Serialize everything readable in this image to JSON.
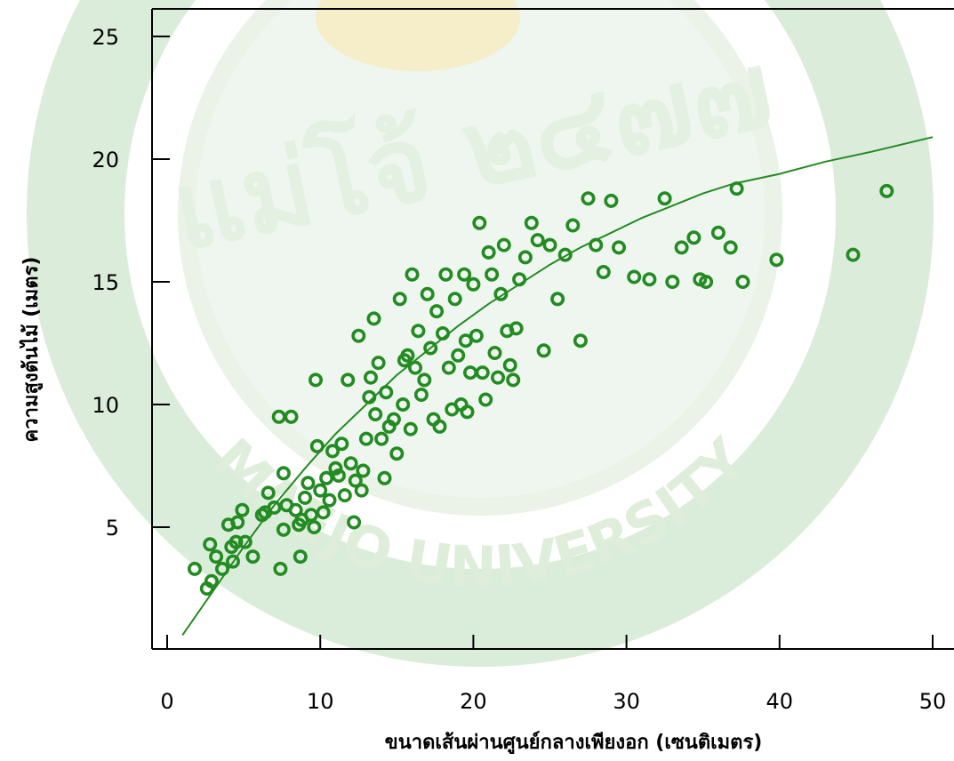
{
  "watermark": {
    "university": "MAEJO UNIVERSITY",
    "motto": "แม่โจ้ ๒๔๗๗",
    "ring_color": "#3f8f3f",
    "accent_color": "#e8c23a"
  },
  "chart_data": {
    "type": "scatter",
    "title": "",
    "xlabel": "ขนาดเส้นผ่านศูนย์กลางเพียงอก (เซนติเมตร)",
    "ylabel": "ความสูงต้นไม้ (เมตร)",
    "xlim": [
      -1,
      51
    ],
    "ylim": [
      0,
      26
    ],
    "x_ticks": [
      0,
      10,
      20,
      30,
      40,
      50
    ],
    "y_ticks": [
      5,
      10,
      15,
      20,
      25
    ],
    "grid": false,
    "point_color": "#228b22",
    "line_color": "#228b22",
    "series": [
      {
        "kind": "points",
        "points": [
          [
            1.8,
            3.3
          ],
          [
            2.6,
            2.5
          ],
          [
            2.8,
            4.3
          ],
          [
            2.9,
            2.8
          ],
          [
            3.2,
            3.8
          ],
          [
            3.6,
            3.3
          ],
          [
            4.3,
            3.6
          ],
          [
            4.0,
            5.1
          ],
          [
            4.6,
            5.2
          ],
          [
            4.2,
            4.2
          ],
          [
            4.5,
            4.4
          ],
          [
            4.9,
            5.7
          ],
          [
            5.1,
            4.4
          ],
          [
            5.6,
            3.8
          ],
          [
            6.2,
            5.5
          ],
          [
            6.4,
            5.6
          ],
          [
            6.6,
            6.4
          ],
          [
            7.0,
            5.8
          ],
          [
            7.3,
            9.5
          ],
          [
            7.4,
            3.3
          ],
          [
            7.6,
            7.2
          ],
          [
            7.6,
            4.9
          ],
          [
            7.8,
            5.9
          ],
          [
            8.1,
            9.5
          ],
          [
            8.4,
            5.7
          ],
          [
            8.6,
            5.1
          ],
          [
            8.7,
            3.8
          ],
          [
            8.8,
            5.3
          ],
          [
            9.0,
            6.2
          ],
          [
            9.2,
            6.8
          ],
          [
            9.4,
            5.5
          ],
          [
            9.6,
            5.0
          ],
          [
            9.7,
            11.0
          ],
          [
            9.8,
            8.3
          ],
          [
            10.0,
            6.5
          ],
          [
            10.2,
            5.6
          ],
          [
            10.4,
            7.0
          ],
          [
            10.6,
            6.1
          ],
          [
            10.8,
            8.1
          ],
          [
            11.0,
            7.4
          ],
          [
            11.2,
            7.1
          ],
          [
            11.4,
            8.4
          ],
          [
            11.6,
            6.3
          ],
          [
            11.8,
            11.0
          ],
          [
            12.0,
            7.6
          ],
          [
            12.2,
            5.2
          ],
          [
            12.3,
            6.9
          ],
          [
            12.5,
            12.8
          ],
          [
            12.7,
            6.5
          ],
          [
            12.8,
            7.3
          ],
          [
            13.0,
            8.6
          ],
          [
            13.2,
            10.3
          ],
          [
            13.3,
            11.1
          ],
          [
            13.5,
            13.5
          ],
          [
            13.6,
            9.6
          ],
          [
            13.8,
            11.7
          ],
          [
            14.0,
            8.6
          ],
          [
            14.2,
            7.0
          ],
          [
            14.3,
            10.5
          ],
          [
            14.5,
            9.1
          ],
          [
            14.8,
            9.4
          ],
          [
            15.0,
            8.0
          ],
          [
            15.2,
            14.3
          ],
          [
            15.4,
            10.0
          ],
          [
            15.5,
            11.8
          ],
          [
            15.7,
            12.0
          ],
          [
            15.9,
            9.0
          ],
          [
            16.0,
            15.3
          ],
          [
            16.2,
            11.5
          ],
          [
            16.4,
            13.0
          ],
          [
            16.6,
            10.4
          ],
          [
            16.8,
            11.0
          ],
          [
            17.0,
            14.5
          ],
          [
            17.2,
            12.3
          ],
          [
            17.4,
            9.4
          ],
          [
            17.6,
            13.8
          ],
          [
            17.8,
            9.1
          ],
          [
            18.0,
            12.9
          ],
          [
            18.2,
            15.3
          ],
          [
            18.4,
            11.5
          ],
          [
            18.6,
            9.8
          ],
          [
            18.8,
            14.3
          ],
          [
            19.0,
            12.0
          ],
          [
            19.2,
            10.0
          ],
          [
            19.4,
            15.3
          ],
          [
            19.5,
            12.6
          ],
          [
            19.6,
            9.7
          ],
          [
            19.8,
            11.3
          ],
          [
            20.0,
            14.9
          ],
          [
            20.2,
            12.8
          ],
          [
            20.4,
            17.4
          ],
          [
            20.6,
            11.3
          ],
          [
            20.8,
            10.2
          ],
          [
            21.0,
            16.2
          ],
          [
            21.2,
            15.3
          ],
          [
            21.4,
            12.1
          ],
          [
            21.6,
            11.1
          ],
          [
            21.8,
            14.5
          ],
          [
            22.0,
            16.5
          ],
          [
            22.2,
            13.0
          ],
          [
            22.4,
            11.6
          ],
          [
            22.6,
            11.0
          ],
          [
            22.8,
            13.1
          ],
          [
            23.0,
            15.1
          ],
          [
            23.4,
            16.0
          ],
          [
            23.8,
            17.4
          ],
          [
            24.2,
            16.7
          ],
          [
            24.6,
            12.2
          ],
          [
            25.0,
            16.5
          ],
          [
            25.5,
            14.3
          ],
          [
            26.0,
            16.1
          ],
          [
            26.5,
            17.3
          ],
          [
            27.0,
            12.6
          ],
          [
            27.5,
            18.4
          ],
          [
            28.0,
            16.5
          ],
          [
            28.5,
            15.4
          ],
          [
            29.0,
            18.3
          ],
          [
            29.5,
            16.4
          ],
          [
            30.5,
            15.2
          ],
          [
            31.5,
            15.1
          ],
          [
            32.5,
            18.4
          ],
          [
            33.0,
            15.0
          ],
          [
            33.6,
            16.4
          ],
          [
            34.4,
            16.8
          ],
          [
            34.8,
            15.1
          ],
          [
            35.2,
            15.0
          ],
          [
            36.0,
            17.0
          ],
          [
            36.8,
            16.4
          ],
          [
            37.2,
            18.8
          ],
          [
            37.6,
            15.0
          ],
          [
            39.8,
            15.9
          ],
          [
            44.8,
            16.1
          ],
          [
            47.0,
            18.7
          ]
        ]
      },
      {
        "kind": "fitted_line",
        "points": [
          [
            1,
            0.6
          ],
          [
            3,
            2.4
          ],
          [
            5,
            4.2
          ],
          [
            7,
            5.9
          ],
          [
            9,
            7.4
          ],
          [
            11,
            8.8
          ],
          [
            13,
            10.0
          ],
          [
            15,
            11.2
          ],
          [
            17,
            12.2
          ],
          [
            19,
            13.2
          ],
          [
            21,
            14.1
          ],
          [
            23,
            14.9
          ],
          [
            25,
            15.7
          ],
          [
            27,
            16.4
          ],
          [
            29,
            17.0
          ],
          [
            31,
            17.6
          ],
          [
            33,
            18.1
          ],
          [
            35,
            18.6
          ],
          [
            37,
            19.0
          ],
          [
            40,
            19.4
          ],
          [
            43,
            19.9
          ],
          [
            46,
            20.3
          ],
          [
            50,
            20.9
          ]
        ]
      }
    ]
  }
}
